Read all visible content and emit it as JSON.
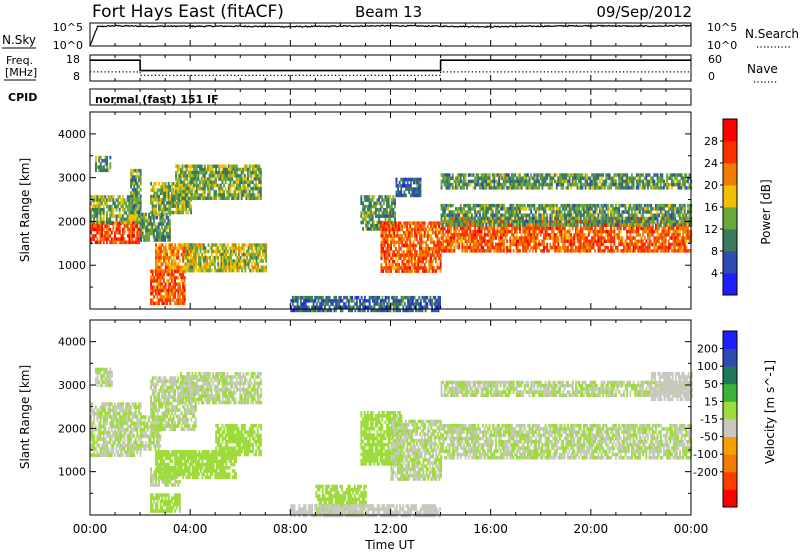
{
  "header": {
    "station": "Fort Hays East (fitACF)",
    "beam": "Beam 13",
    "date": "09/Sep/2012"
  },
  "noise_panel": {
    "left_label": "N.Sky",
    "right_label": "N.Search",
    "left_ticks": [
      "10^5",
      "10^0"
    ],
    "right_ticks": [
      "10^5",
      "10^0"
    ]
  },
  "freq_panel": {
    "left_label_line1": "Freq.",
    "left_label_line2": "[MHz]",
    "right_label": "Nave",
    "left_ticks": [
      "18",
      "8"
    ],
    "right_ticks": [
      "60",
      "0"
    ]
  },
  "cpid_panel": {
    "label": "CPID",
    "mode": "normal (fast) 151 IF"
  },
  "x_axis": {
    "label": "Time UT",
    "ticks": [
      "00:00",
      "04:00",
      "08:00",
      "12:00",
      "16:00",
      "20:00",
      "00:00"
    ]
  },
  "chart_data": [
    {
      "type": "line",
      "title": "N.Sky / N.Search",
      "x_range_hours": [
        0,
        24
      ],
      "yscale": "log",
      "ylim": [
        "10^0",
        "10^5"
      ],
      "series": [
        {
          "name": "N.Sky",
          "x": [
            0,
            0.3,
            1,
            2,
            4,
            6,
            8,
            10,
            12,
            14,
            16,
            18,
            20,
            22,
            24
          ],
          "y_log10": [
            0,
            4.2,
            4.4,
            4.3,
            4.3,
            4.3,
            4.2,
            4.3,
            4.4,
            4.3,
            4.2,
            4.3,
            4.4,
            4.3,
            4.4
          ]
        },
        {
          "name": "N.Search",
          "x": [
            0,
            24
          ],
          "y_log10": [
            0,
            0
          ]
        }
      ]
    },
    {
      "type": "line",
      "title": "Freq. / Nave",
      "x_range_hours": [
        0,
        24
      ],
      "ylim_freq": [
        8,
        18
      ],
      "ylim_nave": [
        0,
        60
      ],
      "series": [
        {
          "name": "Freq. [MHz]",
          "x": [
            0,
            2,
            2,
            14,
            14,
            24
          ],
          "y": [
            16,
            16,
            12,
            12,
            16,
            16
          ]
        },
        {
          "name": "Nave",
          "x": [
            0,
            2,
            2,
            14,
            14,
            24
          ],
          "y": [
            21,
            21,
            13,
            13,
            21,
            21
          ]
        }
      ]
    },
    {
      "type": "heatmap",
      "title": "Power",
      "xlabel": "Time UT",
      "ylabel": "Slant Range [km]",
      "x_range_hours": [
        0,
        24
      ],
      "ylim": [
        0,
        4500
      ],
      "yticks": [
        1000,
        2000,
        3000,
        4000
      ],
      "colorbar": {
        "label": "Power [dB]",
        "ticks": [
          4,
          8,
          12,
          16,
          20,
          24,
          28
        ],
        "range": [
          0,
          32
        ]
      },
      "colors": [
        "#1e1eff",
        "#2d4bb0",
        "#3a7a5c",
        "#6aa83a",
        "#f0c000",
        "#f07b00",
        "#ff3000",
        "#ff0000"
      ],
      "bands": [
        {
          "t0": 0.0,
          "t1": 2.0,
          "r0": 1500,
          "r1": 2000,
          "value": 26
        },
        {
          "t0": 0.0,
          "t1": 2.0,
          "r0": 2000,
          "r1": 2600,
          "value": 14
        },
        {
          "t0": 0.2,
          "t1": 0.8,
          "r0": 3200,
          "r1": 3500,
          "value": 12
        },
        {
          "t0": 1.6,
          "t1": 2.0,
          "r0": 2200,
          "r1": 3200,
          "value": 12
        },
        {
          "t0": 2.0,
          "t1": 3.2,
          "r0": 1600,
          "r1": 2200,
          "value": 12
        },
        {
          "t0": 2.4,
          "t1": 4.0,
          "r0": 2200,
          "r1": 2900,
          "value": 14
        },
        {
          "t0": 3.4,
          "t1": 6.8,
          "r0": 2500,
          "r1": 3300,
          "value": 14
        },
        {
          "t0": 2.6,
          "t1": 4.2,
          "r0": 900,
          "r1": 1500,
          "value": 22
        },
        {
          "t0": 3.8,
          "t1": 7.0,
          "r0": 900,
          "r1": 1500,
          "value": 16
        },
        {
          "t0": 2.4,
          "t1": 3.8,
          "r0": 100,
          "r1": 900,
          "value": 24
        },
        {
          "t0": 10.8,
          "t1": 12.2,
          "r0": 1800,
          "r1": 2600,
          "value": 12
        },
        {
          "t0": 11.6,
          "t1": 14.0,
          "r0": 900,
          "r1": 2000,
          "value": 24
        },
        {
          "t0": 12.2,
          "t1": 13.2,
          "r0": 2600,
          "r1": 3000,
          "value": 8
        },
        {
          "t0": 14.0,
          "t1": 24.0,
          "r0": 1300,
          "r1": 2100,
          "value": 24
        },
        {
          "t0": 14.0,
          "t1": 24.0,
          "r0": 2800,
          "r1": 3100,
          "value": 12
        },
        {
          "t0": 14.0,
          "t1": 24.0,
          "r0": 1900,
          "r1": 2400,
          "value": 12
        },
        {
          "t0": 8.0,
          "t1": 14.0,
          "r0": 0,
          "r1": 300,
          "value": 8
        }
      ]
    },
    {
      "type": "heatmap",
      "title": "Velocity",
      "xlabel": "Time UT",
      "ylabel": "Slant Range [km]",
      "x_range_hours": [
        0,
        24
      ],
      "ylim": [
        0,
        4500
      ],
      "yticks": [
        1000,
        2000,
        3000,
        4000
      ],
      "colorbar": {
        "label": "Velocity [m s^-1]",
        "ticks": [
          200,
          100,
          50,
          15,
          -15,
          -50,
          -100,
          -200
        ],
        "range": [
          -250,
          250
        ]
      },
      "colors": [
        "#ff0000",
        "#ff3c00",
        "#f07b00",
        "#f5a000",
        "#c8c8c0",
        "#9ddc3a",
        "#3cb43c",
        "#1e7a5a",
        "#2d4bb0",
        "#1e1eff"
      ],
      "bands": [
        {
          "t0": 0.0,
          "t1": 2.0,
          "r0": 1400,
          "r1": 2600,
          "value": 0
        },
        {
          "t0": 0.2,
          "t1": 0.9,
          "r0": 3000,
          "r1": 3400,
          "value": 0
        },
        {
          "t0": 2.0,
          "t1": 2.8,
          "r0": 1500,
          "r1": 2300,
          "value": 0
        },
        {
          "t0": 2.4,
          "t1": 4.2,
          "r0": 2000,
          "r1": 3200,
          "value": 0
        },
        {
          "t0": 3.6,
          "t1": 6.8,
          "r0": 2600,
          "r1": 3300,
          "value": 0
        },
        {
          "t0": 2.4,
          "t1": 3.6,
          "r0": 700,
          "r1": 1100,
          "value": 0
        },
        {
          "t0": 2.6,
          "t1": 5.8,
          "r0": 900,
          "r1": 1500,
          "value": 40
        },
        {
          "t0": 5.0,
          "t1": 6.8,
          "r0": 1400,
          "r1": 2100,
          "value": 40
        },
        {
          "t0": 2.4,
          "t1": 3.6,
          "r0": 100,
          "r1": 500,
          "value": 40
        },
        {
          "t0": 9.0,
          "t1": 11.0,
          "r0": 100,
          "r1": 700,
          "value": 35
        },
        {
          "t0": 8.0,
          "t1": 14.0,
          "r0": 0,
          "r1": 250,
          "value": -40
        },
        {
          "t0": 10.8,
          "t1": 12.4,
          "r0": 1200,
          "r1": 2400,
          "value": 40
        },
        {
          "t0": 12.0,
          "t1": 14.0,
          "r0": 800,
          "r1": 2200,
          "value": 0
        },
        {
          "t0": 14.0,
          "t1": 24.0,
          "r0": 1300,
          "r1": 2100,
          "value": 0
        },
        {
          "t0": 14.0,
          "t1": 24.0,
          "r0": 2800,
          "r1": 3100,
          "value": 0
        },
        {
          "t0": 22.4,
          "t1": 24.0,
          "r0": 2700,
          "r1": 3300,
          "value": -30
        }
      ]
    }
  ]
}
